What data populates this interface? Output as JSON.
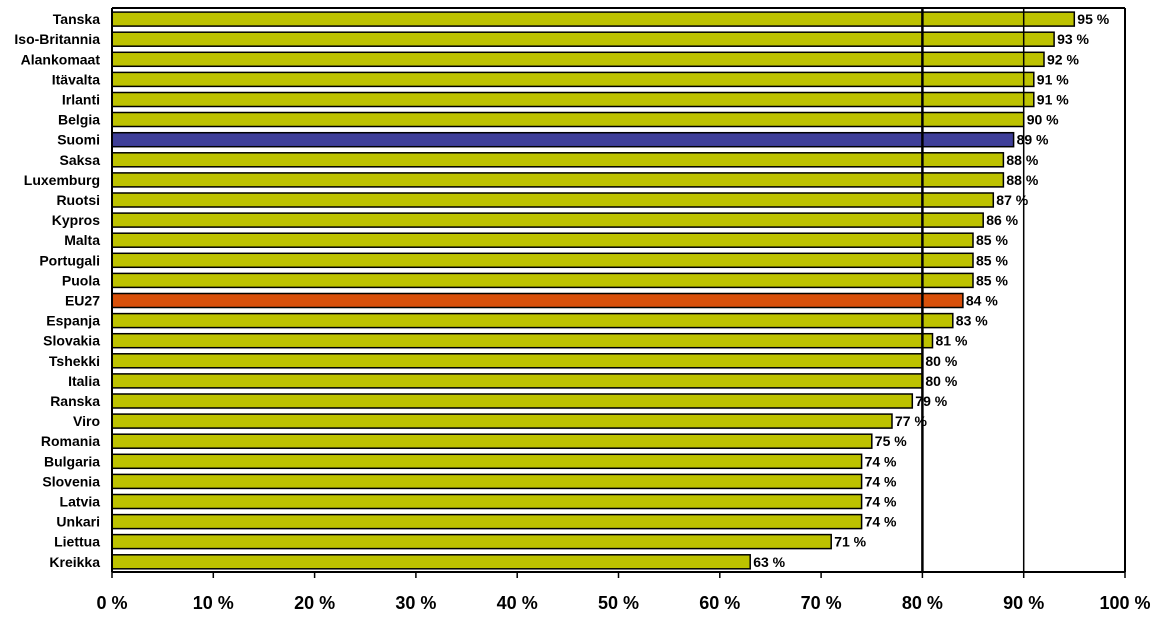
{
  "chart_data": {
    "type": "bar",
    "orientation": "horizontal",
    "title": "",
    "xlabel": "",
    "ylabel": "",
    "xlim": [
      0,
      100
    ],
    "categories": [
      "Tanska",
      "Iso-Britannia",
      "Alankomaat",
      "Itävalta",
      "Irlanti",
      "Belgia",
      "Suomi",
      "Saksa",
      "Luxemburg",
      "Ruotsi",
      "Kypros",
      "Malta",
      "Portugali",
      "Puola",
      "EU27",
      "Espanja",
      "Slovakia",
      "Tshekki",
      "Italia",
      "Ranska",
      "Viro",
      "Romania",
      "Bulgaria",
      "Slovenia",
      "Latvia",
      "Unkari",
      "Liettua",
      "Kreikka"
    ],
    "values": [
      95,
      93,
      92,
      91,
      91,
      90,
      89,
      88,
      88,
      87,
      86,
      85,
      85,
      85,
      84,
      83,
      81,
      80,
      80,
      79,
      77,
      75,
      74,
      74,
      74,
      74,
      71,
      63
    ],
    "value_labels": [
      "95 %",
      "93 %",
      "92 %",
      "91 %",
      "91 %",
      "90 %",
      "89 %",
      "88 %",
      "88 %",
      "87 %",
      "86 %",
      "85 %",
      "85 %",
      "85 %",
      "84 %",
      "83 %",
      "81 %",
      "80 %",
      "80 %",
      "79 %",
      "77 %",
      "75 %",
      "74 %",
      "74 %",
      "74 %",
      "74 %",
      "71 %",
      "63 %"
    ],
    "x_ticks": [
      0,
      10,
      20,
      30,
      40,
      50,
      60,
      70,
      80,
      90,
      100
    ],
    "x_tick_labels": [
      "0 %",
      "10 %",
      "20 %",
      "30 %",
      "40 %",
      "50 %",
      "60 %",
      "70 %",
      "80 %",
      "90 %",
      "100 %"
    ],
    "reference_lines": [
      80,
      90
    ],
    "grid": false,
    "legend": "none",
    "colors": {
      "default_bar": "#BDC200",
      "highlight": {
        "Suomi": "#3F3F99",
        "EU27": "#D8500A"
      },
      "bar_stroke": "#000000"
    }
  }
}
